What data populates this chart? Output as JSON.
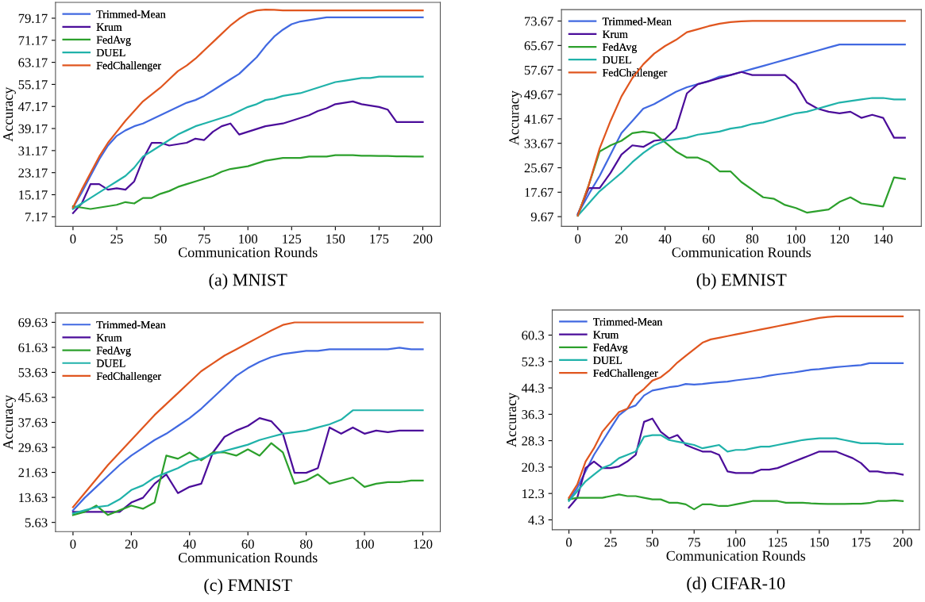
{
  "chart_data": [
    {
      "type": "line",
      "title": "(a) MNIST",
      "xlabel": "Communication Rounds",
      "ylabel": "Accuracy",
      "legend": "top left",
      "xlim": [
        -10,
        210
      ],
      "ylim": [
        3.7,
        84.9
      ],
      "xticks": [
        0,
        25,
        50,
        75,
        100,
        125,
        150,
        175,
        200
      ],
      "yticks": [
        7.17,
        15.17,
        23.17,
        31.17,
        39.17,
        47.17,
        55.17,
        63.17,
        71.17,
        79.17
      ],
      "x": [
        0,
        5,
        10,
        15,
        20,
        25,
        30,
        35,
        40,
        45,
        50,
        55,
        60,
        65,
        70,
        75,
        80,
        85,
        90,
        95,
        100,
        105,
        110,
        115,
        120,
        125,
        130,
        135,
        140,
        145,
        150,
        155,
        160,
        165,
        170,
        175,
        180,
        185,
        190,
        195,
        200
      ],
      "series": [
        {
          "name": "Trimmed-Mean",
          "color": "#4169e1",
          "values": [
            10.5,
            16,
            22,
            28,
            33,
            36.5,
            38.5,
            40,
            41,
            42.5,
            44,
            45.5,
            47,
            48.5,
            49.5,
            51,
            53,
            55,
            57,
            59,
            62,
            65,
            69,
            72.5,
            75,
            77,
            78,
            78.5,
            79,
            79.5,
            79.5,
            79.5,
            79.5,
            79.5,
            79.5,
            79.5,
            79.5,
            79.5,
            79.5,
            79.5,
            79.5
          ]
        },
        {
          "name": "Krum",
          "color": "#4b0d9a",
          "values": [
            8.5,
            12,
            19,
            19,
            17,
            17.5,
            17,
            20,
            28,
            34,
            34,
            33,
            33.5,
            34,
            35.5,
            35,
            38,
            40,
            41,
            37,
            38,
            39,
            40,
            40.5,
            41,
            42,
            43,
            44,
            45.5,
            46.5,
            48,
            48.5,
            49,
            48,
            47.5,
            47,
            46,
            41.5,
            41.5,
            41.5,
            41.5
          ]
        },
        {
          "name": "FedAvg",
          "color": "#2ca02c",
          "values": [
            11,
            10.5,
            10,
            10.5,
            11,
            11.5,
            12.5,
            12,
            14,
            14,
            15.5,
            16.5,
            18,
            19,
            20,
            21,
            22,
            23.5,
            24.5,
            25,
            25.5,
            26.5,
            27.5,
            28,
            28.5,
            28.5,
            28.5,
            29,
            29,
            29,
            29.5,
            29.5,
            29.5,
            29.3,
            29.3,
            29.2,
            29.2,
            29.1,
            29.1,
            29,
            29
          ]
        },
        {
          "name": "DUEL",
          "color": "#20b2aa",
          "values": [
            10,
            12,
            14,
            16,
            18,
            20,
            22,
            25,
            29,
            31,
            33,
            35,
            37,
            38.5,
            40,
            41,
            42,
            43,
            44,
            45.5,
            47,
            48,
            49.5,
            50,
            51,
            51.5,
            52,
            53,
            54,
            55,
            56,
            56.5,
            57,
            57.5,
            57.5,
            58,
            58,
            58,
            58,
            58,
            58
          ]
        },
        {
          "name": "FedChallenger",
          "color": "#e0561f",
          "values": [
            10.5,
            17,
            23,
            29,
            34,
            38,
            42,
            45.5,
            49,
            51.5,
            54,
            57,
            60,
            62,
            64.5,
            67.5,
            70.5,
            73.5,
            76.5,
            79,
            81,
            82,
            82.3,
            82.2,
            82,
            82,
            82,
            82,
            82,
            82,
            82,
            82,
            82,
            82,
            82,
            82,
            82,
            82,
            82,
            82,
            82
          ]
        }
      ]
    },
    {
      "type": "line",
      "title": "(b) EMNIST",
      "xlabel": "Communication Rounds",
      "ylabel": "Accuracy",
      "legend": "top left",
      "xlim": [
        -7.5,
        157.5
      ],
      "ylim": [
        6.5,
        77.4
      ],
      "xticks": [
        0,
        20,
        40,
        60,
        80,
        100,
        120,
        140
      ],
      "yticks": [
        9.67,
        17.67,
        25.67,
        33.67,
        41.67,
        49.67,
        57.67,
        65.67,
        73.67
      ],
      "x": [
        0,
        5,
        10,
        15,
        20,
        25,
        30,
        35,
        40,
        45,
        50,
        55,
        60,
        65,
        70,
        75,
        80,
        85,
        90,
        95,
        100,
        105,
        110,
        115,
        120,
        125,
        130,
        135,
        140,
        145,
        150
      ],
      "series": [
        {
          "name": "Trimmed-Mean",
          "color": "#4169e1",
          "values": [
            10.5,
            17,
            23,
            30,
            37,
            41,
            45,
            46.5,
            48.5,
            50.5,
            52,
            53,
            54,
            55.5,
            56,
            57,
            58,
            59,
            60,
            61,
            62,
            63,
            64,
            65,
            66,
            66,
            66,
            66,
            66,
            66,
            66
          ]
        },
        {
          "name": "Krum",
          "color": "#4b0d9a",
          "values": [
            10.5,
            19,
            19,
            24,
            30,
            33,
            32.5,
            34.5,
            35,
            38.5,
            50,
            53,
            54,
            55,
            56,
            57,
            56,
            56,
            56,
            56,
            53,
            47,
            45,
            44,
            43.5,
            44,
            42,
            43,
            42,
            35.5,
            35.5
          ]
        },
        {
          "name": "FedAvg",
          "color": "#2ca02c",
          "values": [
            10,
            20,
            31,
            33,
            34.5,
            37,
            37.5,
            37,
            34,
            31,
            29,
            29,
            27.5,
            24.5,
            24.5,
            21,
            18.5,
            16,
            15.5,
            13.5,
            12.5,
            11,
            11.5,
            12,
            14.5,
            16,
            14,
            13.5,
            13,
            22.5,
            22
          ]
        },
        {
          "name": "DUEL",
          "color": "#20b2aa",
          "values": [
            10,
            14,
            18,
            21,
            24,
            27.5,
            30.5,
            33,
            34.5,
            35,
            35.5,
            36.5,
            37,
            37.5,
            38.5,
            39,
            40,
            40.5,
            41.5,
            42.5,
            43.5,
            44,
            45,
            46,
            47,
            47.5,
            48,
            48.5,
            48.5,
            48,
            48
          ]
        },
        {
          "name": "FedChallenger",
          "color": "#e0561f",
          "values": [
            10,
            20,
            32,
            41,
            49,
            55,
            59.5,
            63,
            65.5,
            67.5,
            70,
            71,
            72,
            72.8,
            73.3,
            73.6,
            73.7,
            73.7,
            73.7,
            73.7,
            73.7,
            73.7,
            73.7,
            73.7,
            73.7,
            73.7,
            73.7,
            73.7,
            73.7,
            73.7,
            73.7
          ]
        }
      ]
    },
    {
      "type": "line",
      "title": "(c) FMNIST",
      "xlabel": "Communication Rounds",
      "ylabel": "Accuracy",
      "legend": "top left",
      "xlim": [
        -6,
        126
      ],
      "ylim": [
        2.7,
        72.6
      ],
      "xticks": [
        0,
        20,
        40,
        60,
        80,
        100,
        120
      ],
      "yticks": [
        5.63,
        13.63,
        21.63,
        29.63,
        37.63,
        45.63,
        53.63,
        61.63,
        69.63
      ],
      "x": [
        0,
        4,
        8,
        12,
        16,
        20,
        24,
        28,
        32,
        36,
        40,
        44,
        48,
        52,
        56,
        60,
        64,
        68,
        72,
        76,
        80,
        84,
        88,
        92,
        96,
        100,
        104,
        108,
        112,
        116,
        120
      ],
      "series": [
        {
          "name": "Trimmed-Mean",
          "color": "#4169e1",
          "values": [
            9.5,
            13.5,
            17,
            20.5,
            24,
            27,
            29.5,
            32,
            34,
            36.5,
            39,
            42,
            45.5,
            49,
            52.5,
            55,
            57,
            58.5,
            59.5,
            60,
            60.5,
            60.5,
            61,
            61,
            61,
            61,
            61,
            61,
            61.5,
            61,
            61
          ]
        },
        {
          "name": "Krum",
          "color": "#4b0d9a",
          "values": [
            9,
            9,
            9,
            9,
            9,
            12,
            13.5,
            18,
            21,
            15,
            17,
            18,
            28,
            33,
            35,
            36.5,
            39,
            38,
            34,
            21.5,
            21.5,
            23,
            36,
            34,
            36,
            34,
            35,
            34.5,
            35,
            35,
            35
          ]
        },
        {
          "name": "FedAvg",
          "color": "#2ca02c",
          "values": [
            8,
            9,
            11,
            8,
            9.5,
            11,
            10,
            12,
            27,
            26,
            28,
            25.5,
            28,
            28,
            27,
            29,
            27,
            31,
            28,
            18,
            19,
            21,
            18,
            19,
            20,
            17,
            18,
            18.5,
            18.5,
            19,
            19
          ]
        },
        {
          "name": "DUEL",
          "color": "#20b2aa",
          "values": [
            8.5,
            9.5,
            10.5,
            11,
            13,
            16,
            17.5,
            20,
            21.5,
            23,
            25,
            26,
            27.5,
            28.5,
            29.5,
            30.5,
            32,
            33,
            34,
            34.5,
            35,
            36,
            37,
            38.5,
            41.5,
            41.5,
            41.5,
            41.5,
            41.5,
            41.5,
            41.5
          ]
        },
        {
          "name": "FedChallenger",
          "color": "#e0561f",
          "values": [
            10.5,
            15,
            19.5,
            24,
            28,
            32,
            36,
            40,
            43.5,
            47,
            50.5,
            54,
            56.5,
            59,
            61,
            63,
            65,
            67,
            68.8,
            69.6,
            69.6,
            69.6,
            69.6,
            69.6,
            69.6,
            69.6,
            69.6,
            69.6,
            69.6,
            69.6,
            69.6
          ]
        }
      ]
    },
    {
      "type": "line",
      "title": "(d) CIFAR-10",
      "xlabel": "Communication Rounds",
      "ylabel": "Accuracy",
      "legend": "top left",
      "xlim": [
        -10,
        210
      ],
      "ylim": [
        1.3,
        67.9
      ],
      "xticks": [
        0,
        25,
        50,
        75,
        100,
        125,
        150,
        175,
        200
      ],
      "yticks": [
        4.3,
        12.3,
        20.3,
        28.3,
        36.3,
        44.3,
        52.3,
        60.3
      ],
      "x": [
        0,
        5,
        10,
        15,
        20,
        25,
        30,
        35,
        40,
        45,
        50,
        55,
        60,
        65,
        70,
        75,
        80,
        85,
        90,
        95,
        100,
        105,
        110,
        115,
        120,
        125,
        130,
        135,
        140,
        145,
        150,
        155,
        160,
        165,
        170,
        175,
        180,
        185,
        190,
        195,
        200
      ],
      "series": [
        {
          "name": "Trimmed-Mean",
          "color": "#4169e1",
          "values": [
            10.5,
            14,
            19,
            24,
            28,
            32,
            36,
            38,
            39,
            42,
            43.5,
            44,
            44.5,
            44.8,
            45.5,
            45.3,
            45.5,
            45.8,
            46,
            46.2,
            46.6,
            46.9,
            47.2,
            47.5,
            48,
            48.4,
            48.7,
            49,
            49.4,
            49.8,
            50,
            50.3,
            50.6,
            50.8,
            51,
            51.2,
            51.8,
            51.8,
            51.8,
            51.8,
            51.8
          ]
        },
        {
          "name": "Krum",
          "color": "#4b0d9a",
          "values": [
            8,
            11,
            20,
            22,
            20,
            20,
            20.5,
            22,
            24,
            34,
            35,
            31,
            29,
            30,
            27,
            26,
            25,
            25,
            24,
            19,
            18.5,
            18.5,
            18.5,
            19.5,
            19.5,
            20,
            21,
            22,
            23,
            24,
            25,
            25,
            25,
            24,
            23,
            21.5,
            19,
            19,
            18.5,
            18.5,
            18
          ]
        },
        {
          "name": "FedAvg",
          "color": "#2ca02c",
          "values": [
            10.5,
            11,
            11,
            11,
            11,
            11.5,
            12,
            11.5,
            11.5,
            11,
            10.5,
            10.5,
            9.5,
            9.5,
            9,
            7.5,
            9,
            9,
            8.5,
            8.5,
            9,
            9.5,
            10,
            10,
            10,
            10,
            9.5,
            9.5,
            9.5,
            9.3,
            9.2,
            9.1,
            9.1,
            9.1,
            9.2,
            9.2,
            9.4,
            10,
            10,
            10.2,
            10
          ]
        },
        {
          "name": "DUEL",
          "color": "#20b2aa",
          "values": [
            10,
            13,
            16,
            18,
            20,
            21,
            23,
            24,
            25,
            29.5,
            30,
            30,
            28.5,
            28,
            27.5,
            27,
            26,
            26.5,
            27,
            25,
            25.5,
            25.5,
            26,
            26.5,
            26.5,
            27,
            27.5,
            28,
            28.5,
            28.8,
            29,
            29,
            29,
            28.5,
            28,
            27.5,
            27.5,
            27.5,
            27.3,
            27.3,
            27.3
          ]
        },
        {
          "name": "FedChallenger",
          "color": "#e0561f",
          "values": [
            11,
            15,
            22,
            26,
            31,
            34,
            37,
            38,
            42,
            44,
            46.5,
            47.5,
            49.5,
            52,
            54,
            56,
            58,
            59,
            59.5,
            60,
            60.5,
            61,
            61.5,
            62,
            62.5,
            63,
            63.5,
            64,
            64.5,
            65,
            65.5,
            65.8,
            66,
            66,
            66,
            66,
            66,
            66,
            66,
            66,
            66
          ]
        }
      ]
    }
  ]
}
